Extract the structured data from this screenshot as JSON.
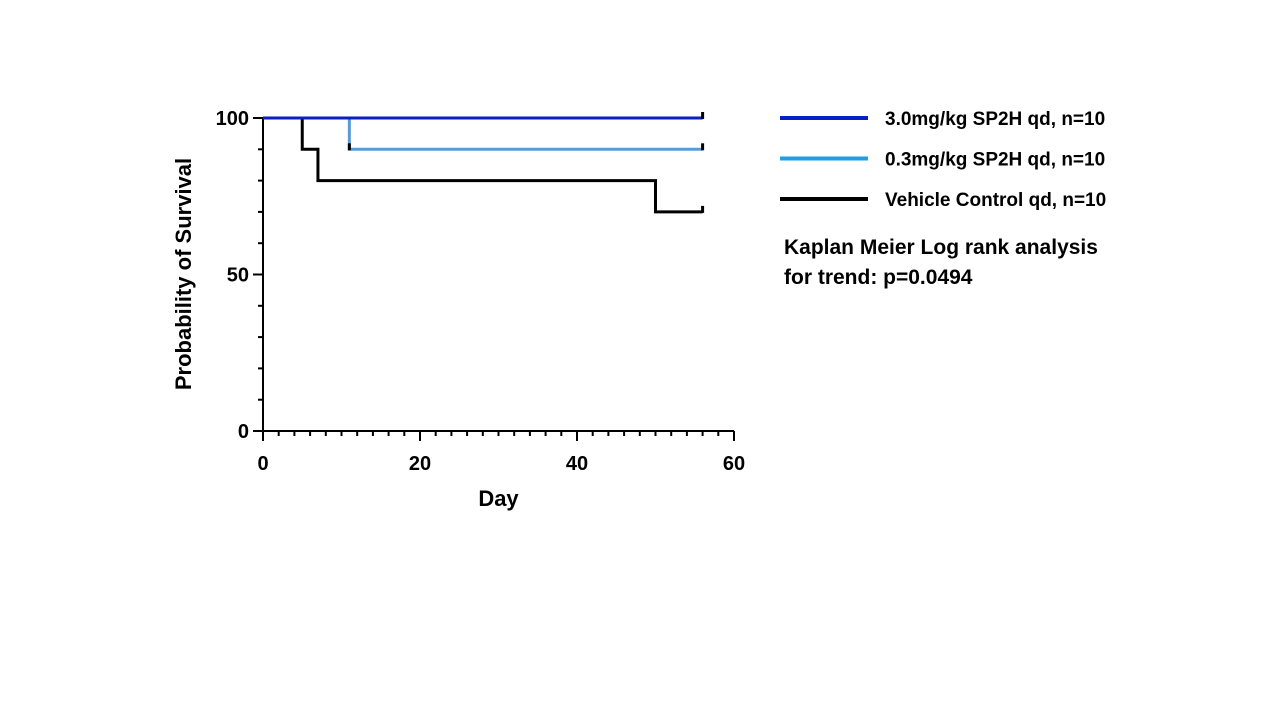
{
  "chart_data": {
    "type": "line",
    "step": true,
    "xlabel": "Day",
    "ylabel": "Probability of Survival",
    "xlim": [
      0,
      60
    ],
    "ylim": [
      0,
      100
    ],
    "x_ticks": [
      0,
      20,
      40,
      60
    ],
    "y_ticks": [
      0,
      50,
      100
    ],
    "x_minor_step": 2,
    "y_minor_step": 10,
    "grid": false,
    "legend_position": "right",
    "series": [
      {
        "name": "3.0mg/kg SP2H qd, n=10",
        "color": "#0a1fc4",
        "points": [
          [
            0,
            100
          ],
          [
            56,
            100
          ]
        ],
        "censor_marks": [
          56
        ]
      },
      {
        "name": "0.3mg/kg SP2H qd, n=10",
        "color": "#1aa3e0",
        "draw_color": "#5b9bd5",
        "points": [
          [
            0,
            100
          ],
          [
            11,
            100
          ],
          [
            11,
            90
          ],
          [
            56,
            90
          ]
        ],
        "censor_marks": [
          11,
          56
        ]
      },
      {
        "name": "Vehicle Control qd, n=10",
        "color": "#000000",
        "points": [
          [
            0,
            100
          ],
          [
            5,
            100
          ],
          [
            5,
            90
          ],
          [
            7,
            90
          ],
          [
            7,
            80
          ],
          [
            50,
            80
          ],
          [
            50,
            70
          ],
          [
            56,
            70
          ]
        ],
        "censor_marks": [
          56
        ]
      }
    ],
    "annotation": [
      "Kaplan Meier Log rank analysis",
      "for trend: p=0.0494"
    ]
  }
}
